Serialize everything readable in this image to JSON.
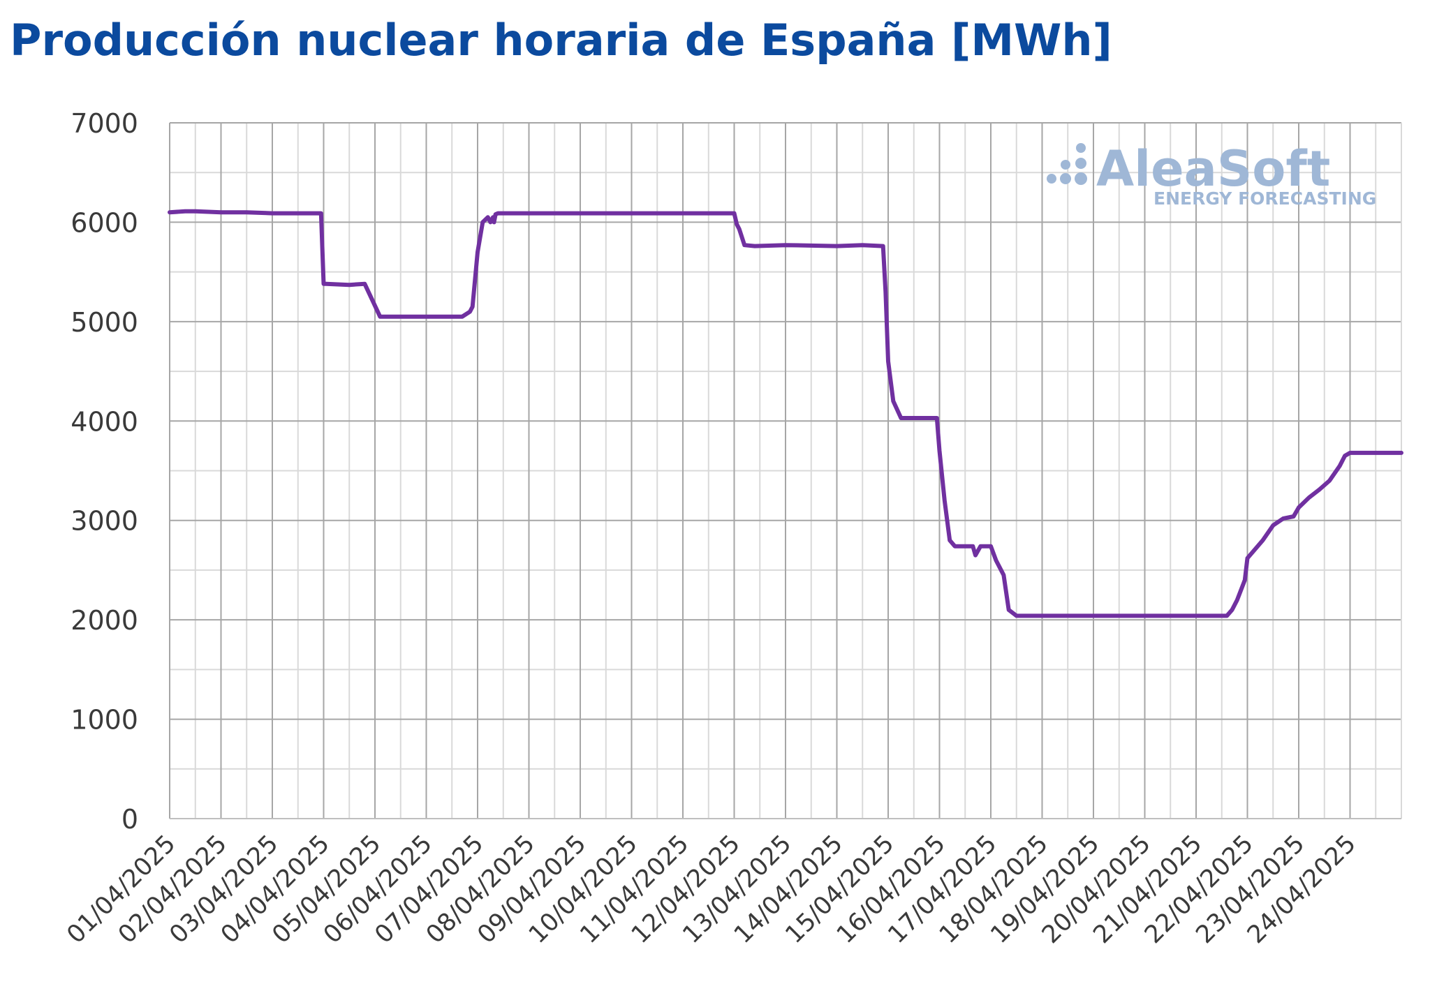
{
  "chart_data": {
    "type": "line",
    "title": "Producción nuclear horaria de España [MWh]",
    "xlabel": "",
    "ylabel": "",
    "ylim": [
      0,
      7000
    ],
    "yticks": [
      0,
      1000,
      2000,
      3000,
      4000,
      5000,
      6000,
      7000
    ],
    "categories": [
      "01/04/2025",
      "02/04/2025",
      "03/04/2025",
      "04/04/2025",
      "05/04/2025",
      "06/04/2025",
      "07/04/2025",
      "08/04/2025",
      "09/04/2025",
      "10/04/2025",
      "11/04/2025",
      "12/04/2025",
      "13/04/2025",
      "14/04/2025",
      "15/04/2025",
      "16/04/2025",
      "17/04/2025",
      "18/04/2025",
      "19/04/2025",
      "20/04/2025",
      "21/04/2025",
      "22/04/2025",
      "23/04/2025",
      "24/04/2025"
    ],
    "grid": true,
    "line_color": "#7030a0",
    "series": [
      {
        "x": [
          0,
          0.3,
          0.5,
          1.0,
          1.5,
          2.0,
          2.5,
          2.95,
          3.0,
          3.05,
          3.5,
          3.8,
          4.1,
          4.25,
          4.4,
          5.0,
          5.5,
          5.7,
          5.85,
          5.9,
          6.0,
          6.1,
          6.2,
          6.25,
          6.3,
          6.32,
          6.35,
          6.4,
          7.0,
          8.0,
          9.0,
          10.0,
          11.0,
          11.05,
          11.1,
          11.2,
          11.4,
          12.0,
          13.0,
          13.5,
          13.9,
          13.95,
          14.0,
          14.1,
          14.25,
          14.5,
          14.8,
          14.95,
          15.0,
          15.1,
          15.2,
          15.3,
          15.5,
          15.65,
          15.7,
          15.8,
          16.0,
          16.1,
          16.25,
          16.35,
          16.5,
          17.0,
          18.0,
          19.0,
          20.0,
          20.6,
          20.7,
          20.8,
          20.95,
          21.0,
          21.3,
          21.5,
          21.7,
          21.9,
          22.0,
          22.2,
          22.4,
          22.6,
          22.8,
          22.9,
          23.0,
          24.0
        ],
        "values": [
          6100,
          6110,
          6110,
          6100,
          6100,
          6090,
          6090,
          6090,
          5380,
          5380,
          5370,
          5380,
          5050,
          5050,
          5050,
          5050,
          5050,
          5050,
          5100,
          5150,
          5700,
          6000,
          6050,
          6000,
          6050,
          6000,
          6080,
          6090,
          6090,
          6090,
          6090,
          6090,
          6090,
          5980,
          5930,
          5770,
          5760,
          5770,
          5760,
          5770,
          5760,
          5300,
          4600,
          4200,
          4030,
          4030,
          4030,
          4030,
          3700,
          3200,
          2800,
          2740,
          2740,
          2740,
          2650,
          2740,
          2740,
          2600,
          2450,
          2100,
          2040,
          2040,
          2040,
          2040,
          2040,
          2040,
          2100,
          2200,
          2400,
          2620,
          2800,
          2950,
          3020,
          3040,
          3130,
          3230,
          3310,
          3400,
          3550,
          3650,
          3680,
          3680
        ]
      }
    ]
  },
  "logo": {
    "name": "AleaSoft",
    "tagline": "ENERGY FORECASTING"
  }
}
